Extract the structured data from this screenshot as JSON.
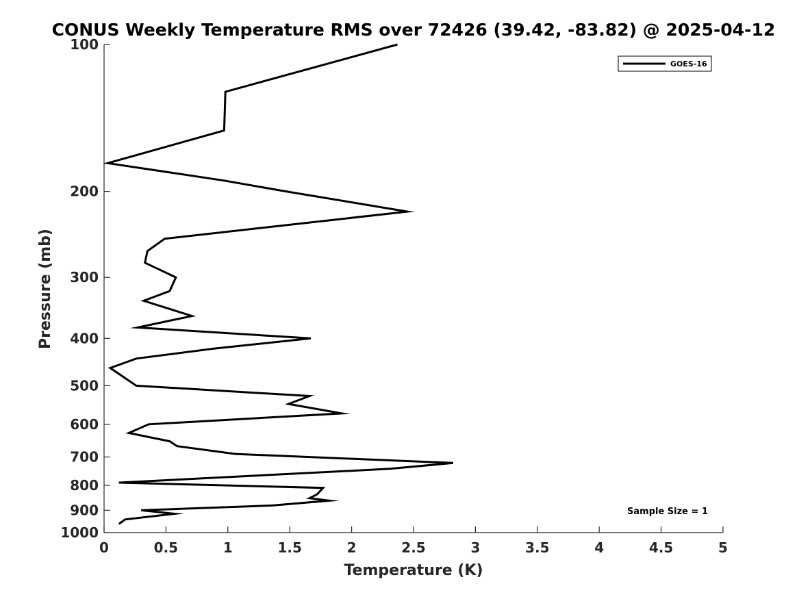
{
  "chart_data": {
    "type": "line",
    "title": "CONUS Weekly Temperature RMS over 72426 (39.42, -83.82) @ 2025-04-12",
    "xlabel": "Temperature (K)",
    "ylabel": "Pressure (mb)",
    "xlim": [
      0,
      5
    ],
    "ylim": [
      100,
      1000
    ],
    "y_scale": "log",
    "y_reversed": true,
    "x_ticks": [
      0,
      0.5,
      1,
      1.5,
      2,
      2.5,
      3,
      3.5,
      4,
      4.5,
      5
    ],
    "x_tick_labels": [
      "0",
      "0.5",
      "1",
      "1.5",
      "2",
      "2.5",
      "3",
      "3.5",
      "4",
      "4.5",
      "5"
    ],
    "y_ticks": [
      100,
      200,
      300,
      400,
      500,
      600,
      700,
      800,
      900,
      1000
    ],
    "y_tick_labels": [
      "100",
      "200",
      "300",
      "400",
      "500",
      "600",
      "700",
      "800",
      "900",
      "1000"
    ],
    "grid": false,
    "legend_position": "top-right",
    "annotation": "Sample Size = 1",
    "series": [
      {
        "name": "GOES-16",
        "color": "#000000",
        "points": [
          {
            "x": 2.37,
            "y": 100
          },
          {
            "x": 0.98,
            "y": 125
          },
          {
            "x": 0.97,
            "y": 150
          },
          {
            "x": 0.03,
            "y": 175
          },
          {
            "x": 0.97,
            "y": 190
          },
          {
            "x": 1.47,
            "y": 200
          },
          {
            "x": 2.45,
            "y": 220
          },
          {
            "x": 0.49,
            "y": 250
          },
          {
            "x": 0.35,
            "y": 265
          },
          {
            "x": 0.33,
            "y": 280
          },
          {
            "x": 0.58,
            "y": 300
          },
          {
            "x": 0.53,
            "y": 320
          },
          {
            "x": 0.32,
            "y": 335
          },
          {
            "x": 0.71,
            "y": 360
          },
          {
            "x": 0.27,
            "y": 380
          },
          {
            "x": 1.67,
            "y": 400
          },
          {
            "x": 0.88,
            "y": 420
          },
          {
            "x": 0.26,
            "y": 440
          },
          {
            "x": 0.05,
            "y": 460
          },
          {
            "x": 0.26,
            "y": 500
          },
          {
            "x": 1.66,
            "y": 525
          },
          {
            "x": 1.49,
            "y": 545
          },
          {
            "x": 1.92,
            "y": 570
          },
          {
            "x": 0.36,
            "y": 600
          },
          {
            "x": 0.2,
            "y": 625
          },
          {
            "x": 0.53,
            "y": 650
          },
          {
            "x": 0.59,
            "y": 665
          },
          {
            "x": 1.06,
            "y": 690
          },
          {
            "x": 2.82,
            "y": 720
          },
          {
            "x": 2.31,
            "y": 740
          },
          {
            "x": 0.12,
            "y": 790
          },
          {
            "x": 1.77,
            "y": 810
          },
          {
            "x": 1.72,
            "y": 835
          },
          {
            "x": 1.66,
            "y": 850
          },
          {
            "x": 1.82,
            "y": 860
          },
          {
            "x": 1.36,
            "y": 880
          },
          {
            "x": 0.3,
            "y": 900
          },
          {
            "x": 0.57,
            "y": 915
          },
          {
            "x": 0.17,
            "y": 940
          },
          {
            "x": 0.12,
            "y": 960
          }
        ]
      }
    ]
  }
}
